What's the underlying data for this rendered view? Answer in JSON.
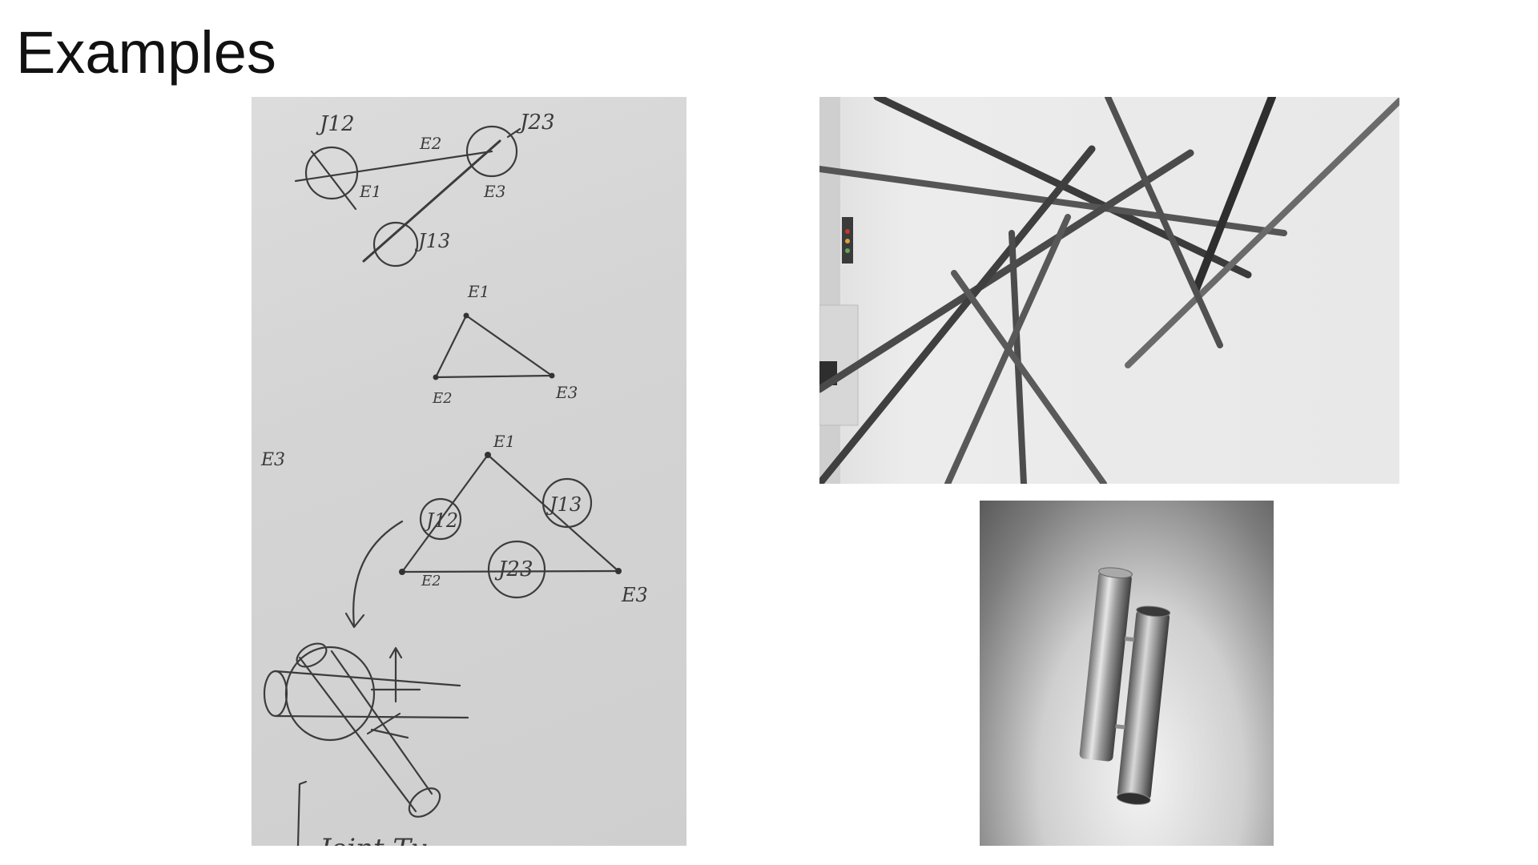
{
  "slide": {
    "title": "Examples"
  },
  "images": {
    "sketch": {
      "labels": {
        "j12": "J12",
        "j23": "J23",
        "j13": "J13",
        "e1": "E1",
        "e2": "E2",
        "e3": "E3",
        "bottom_text": "Joint Ty"
      }
    },
    "tubes": {},
    "joint": {}
  }
}
